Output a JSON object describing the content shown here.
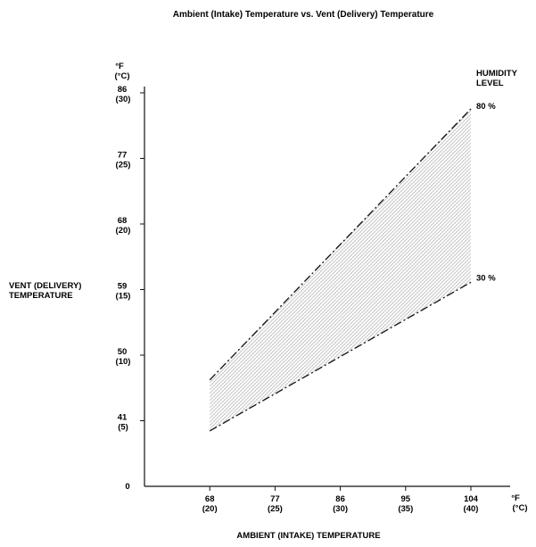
{
  "chart_data": {
    "type": "area",
    "title": "Ambient (Intake) Temperature vs. Vent (Delivery) Temperature",
    "xlabel": "AMBIENT (INTAKE) TEMPERATURE",
    "ylabel": [
      "VENT (DELIVERY)",
      "TEMPERATURE"
    ],
    "x_unit": [
      "°F",
      "(°C)"
    ],
    "y_unit": [
      "°F",
      "(°C)"
    ],
    "xlim": [
      59,
      104
    ],
    "ylim": [
      32,
      86
    ],
    "x_ticks": [
      {
        "value": 68,
        "f": "68",
        "c": "(20)"
      },
      {
        "value": 77,
        "f": "77",
        "c": "(25)"
      },
      {
        "value": 86,
        "f": "86",
        "c": "(30)"
      },
      {
        "value": 95,
        "f": "95",
        "c": "(35)"
      },
      {
        "value": 104,
        "f": "104",
        "c": "(40)"
      }
    ],
    "y_ticks": [
      {
        "value": 86,
        "f": "86",
        "c": "(30)"
      },
      {
        "value": 77,
        "f": "77",
        "c": "(25)"
      },
      {
        "value": 68,
        "f": "68",
        "c": "(20)"
      },
      {
        "value": 59,
        "f": "59",
        "c": "(15)"
      },
      {
        "value": 50,
        "f": "50",
        "c": "(10)"
      },
      {
        "value": 41,
        "f": "41",
        "c": "(5)"
      },
      {
        "value": 32,
        "f": "0",
        "c": ""
      }
    ],
    "legend_title": [
      "HUMIDITY",
      "LEVEL"
    ],
    "series": [
      {
        "name": "80 %",
        "x": [
          68,
          104
        ],
        "y": [
          46.6,
          83.8
        ]
      },
      {
        "name": "30 %",
        "x": [
          68,
          104
        ],
        "y": [
          39.6,
          60.0
        ]
      }
    ]
  }
}
